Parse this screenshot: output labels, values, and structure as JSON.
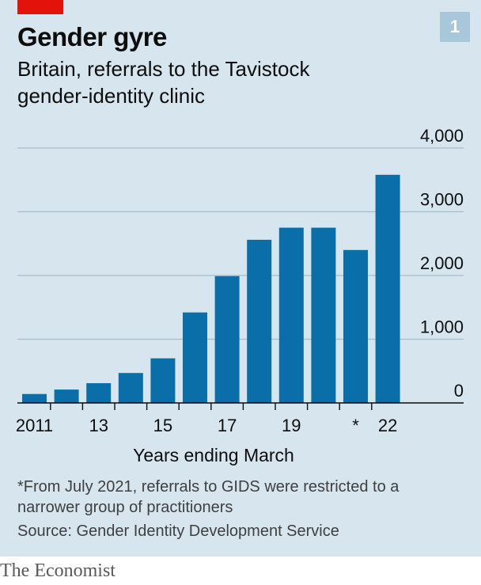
{
  "header": {
    "title": "Gender gyre",
    "subtitle": "Britain, referrals to the Tavistock gender-identity clinic",
    "chart_number": "1"
  },
  "colors": {
    "background": "#d6e5ee",
    "bar": "#0a6fa8",
    "accent": "#e3120b",
    "gridline": "#a7bcc8"
  },
  "chart_data": {
    "type": "bar",
    "title": "Gender gyre",
    "subtitle": "Britain, referrals to the Tavistock gender-identity clinic",
    "xlabel": "Years ending March",
    "ylabel": "",
    "categories": [
      "2011",
      "12",
      "13",
      "14",
      "15",
      "16",
      "17",
      "18",
      "19",
      "20",
      "*",
      "22"
    ],
    "tick_labels": [
      "2011",
      "",
      "13",
      "",
      "15",
      "",
      "17",
      "",
      "19",
      "",
      "*",
      "22"
    ],
    "values": [
      140,
      210,
      310,
      470,
      700,
      1420,
      1990,
      2560,
      2750,
      2750,
      2400,
      3580
    ],
    "ylim": [
      0,
      4000
    ],
    "yticks": [
      0,
      1000,
      2000,
      3000,
      4000
    ],
    "ytick_labels": [
      "0",
      "1,000",
      "2,000",
      "3,000",
      "4,000"
    ],
    "y_axis_side": "right",
    "grid": true
  },
  "footnote": "*From July 2021, referrals to GIDS were restricted to a narrower group of practitioners",
  "source": "Source: Gender Identity Development Service",
  "brand": "The Economist"
}
